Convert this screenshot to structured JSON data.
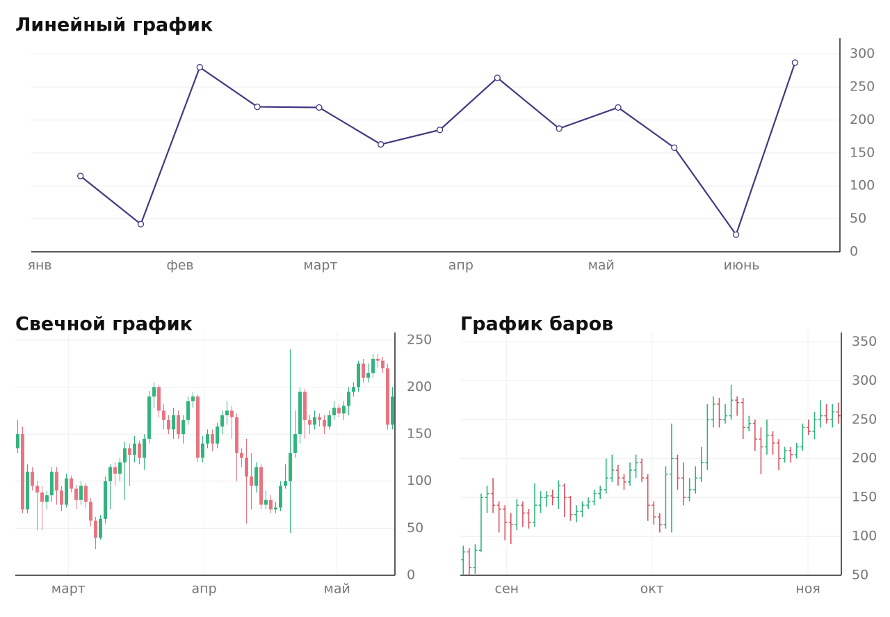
{
  "chart_data": [
    {
      "type": "line",
      "title": "Линейный график",
      "color": "#3f3a80",
      "grid": true,
      "x": [
        0.29,
        0.72,
        1.14,
        1.55,
        1.99,
        2.43,
        2.85,
        3.26,
        3.7,
        4.12,
        4.52,
        4.96,
        5.38
      ],
      "values": [
        115,
        42,
        280,
        220,
        219,
        163,
        185,
        264,
        187,
        219,
        158,
        26,
        287
      ],
      "xlim": [
        -0.06,
        5.7
      ],
      "xticks": [
        {
          "value": 0,
          "label": "янв"
        },
        {
          "value": 1,
          "label": "фев"
        },
        {
          "value": 2,
          "label": "март"
        },
        {
          "value": 3,
          "label": "апр"
        },
        {
          "value": 4,
          "label": "май"
        },
        {
          "value": 5,
          "label": "июнь"
        }
      ],
      "ylim": [
        0,
        324
      ],
      "yticks": [
        0,
        50,
        100,
        150,
        200,
        250,
        300
      ]
    },
    {
      "type": "candlestick",
      "title": "Свечной график",
      "up_color": "#2fb47c",
      "down_color": "#e8737f",
      "grid": true,
      "open": [
        135,
        150,
        70,
        110,
        95,
        88,
        78,
        85,
        110,
        90,
        75,
        103,
        92,
        80,
        95,
        78,
        58,
        40,
        60,
        100,
        115,
        108,
        120,
        135,
        128,
        140,
        125,
        145,
        190,
        200,
        175,
        165,
        155,
        170,
        150,
        165,
        185,
        190,
        125,
        140,
        150,
        140,
        158,
        170,
        175,
        168,
        130,
        125,
        105,
        95,
        115,
        75,
        80,
        70,
        72,
        95,
        100,
        130,
        150,
        195,
        165,
        160,
        168,
        165,
        158,
        170,
        178,
        172,
        180,
        195,
        200,
        225,
        210,
        215,
        230,
        228,
        220,
        160
      ],
      "high": [
        165,
        158,
        118,
        115,
        100,
        95,
        90,
        115,
        115,
        95,
        108,
        106,
        96,
        100,
        98,
        82,
        62,
        64,
        105,
        118,
        120,
        125,
        142,
        140,
        148,
        143,
        150,
        196,
        205,
        202,
        182,
        170,
        178,
        175,
        170,
        190,
        195,
        192,
        148,
        155,
        155,
        162,
        175,
        185,
        180,
        172,
        135,
        145,
        130,
        120,
        118,
        90,
        85,
        78,
        100,
        118,
        240,
        175,
        200,
        198,
        170,
        175,
        172,
        170,
        175,
        185,
        182,
        185,
        200,
        205,
        228,
        230,
        225,
        235,
        235,
        232,
        225,
        200
      ],
      "low": [
        130,
        66,
        66,
        90,
        48,
        48,
        70,
        78,
        75,
        68,
        72,
        88,
        70,
        75,
        72,
        52,
        28,
        38,
        55,
        70,
        95,
        100,
        80,
        95,
        120,
        118,
        112,
        140,
        178,
        168,
        155,
        150,
        145,
        145,
        140,
        160,
        178,
        120,
        120,
        135,
        132,
        135,
        150,
        160,
        145,
        100,
        115,
        55,
        70,
        88,
        70,
        70,
        66,
        66,
        68,
        92,
        45,
        125,
        140,
        145,
        150,
        155,
        158,
        150,
        155,
        165,
        168,
        165,
        170,
        190,
        195,
        205,
        205,
        210,
        220,
        215,
        155,
        155
      ],
      "close": [
        150,
        70,
        110,
        95,
        88,
        78,
        85,
        110,
        90,
        75,
        103,
        92,
        80,
        95,
        78,
        58,
        40,
        60,
        100,
        115,
        108,
        120,
        135,
        128,
        140,
        125,
        145,
        190,
        200,
        175,
        165,
        155,
        170,
        150,
        165,
        185,
        190,
        125,
        140,
        150,
        140,
        158,
        170,
        175,
        168,
        130,
        125,
        105,
        95,
        115,
        75,
        80,
        70,
        72,
        95,
        100,
        130,
        150,
        195,
        165,
        160,
        168,
        165,
        158,
        170,
        178,
        172,
        180,
        195,
        200,
        225,
        210,
        215,
        230,
        228,
        220,
        160,
        190
      ],
      "xlim": [
        -0.5,
        77.5
      ],
      "xticks": [
        {
          "value": 10.4,
          "label": "март"
        },
        {
          "value": 38.3,
          "label": "апр"
        },
        {
          "value": 65.6,
          "label": "май"
        }
      ],
      "ylim": [
        0,
        258
      ],
      "yticks": [
        0,
        50,
        100,
        150,
        200,
        250
      ]
    },
    {
      "type": "ohlc",
      "title": "График баров",
      "up_color": "#2fb47c",
      "down_color": "#d9555f",
      "grid": true,
      "open": [
        70,
        80,
        60,
        82,
        150,
        155,
        140,
        135,
        118,
        115,
        140,
        130,
        118,
        140,
        150,
        152,
        150,
        165,
        150,
        128,
        132,
        140,
        145,
        155,
        160,
        175,
        185,
        175,
        170,
        185,
        195,
        175,
        140,
        125,
        115,
        180,
        200,
        175,
        150,
        160,
        175,
        195,
        250,
        270,
        250,
        255,
        275,
        272,
        240,
        245,
        225,
        215,
        230,
        220,
        200,
        210,
        205,
        215,
        240,
        235,
        250,
        255,
        250,
        260
      ],
      "high": [
        88,
        85,
        90,
        155,
        165,
        175,
        145,
        140,
        130,
        148,
        145,
        135,
        168,
        158,
        158,
        160,
        172,
        168,
        152,
        140,
        145,
        150,
        160,
        165,
        200,
        205,
        192,
        180,
        195,
        205,
        200,
        180,
        145,
        130,
        190,
        245,
        205,
        195,
        175,
        190,
        215,
        270,
        280,
        278,
        270,
        295,
        280,
        278,
        255,
        250,
        240,
        250,
        235,
        225,
        215,
        215,
        220,
        245,
        250,
        260,
        275,
        270,
        270,
        272
      ],
      "low": [
        50,
        50,
        52,
        80,
        130,
        130,
        105,
        95,
        90,
        108,
        112,
        110,
        112,
        130,
        138,
        140,
        135,
        125,
        120,
        118,
        125,
        135,
        140,
        148,
        155,
        170,
        165,
        160,
        165,
        175,
        170,
        120,
        115,
        105,
        110,
        105,
        160,
        140,
        145,
        155,
        170,
        185,
        240,
        240,
        245,
        250,
        255,
        225,
        235,
        210,
        180,
        205,
        205,
        185,
        195,
        195,
        200,
        210,
        230,
        225,
        240,
        245,
        240,
        245
      ],
      "close": [
        80,
        60,
        82,
        150,
        155,
        140,
        135,
        118,
        115,
        140,
        130,
        118,
        140,
        150,
        152,
        150,
        165,
        150,
        128,
        132,
        140,
        145,
        155,
        160,
        175,
        185,
        175,
        170,
        185,
        195,
        175,
        140,
        125,
        115,
        180,
        200,
        175,
        150,
        160,
        175,
        195,
        250,
        270,
        250,
        255,
        275,
        272,
        240,
        245,
        225,
        215,
        230,
        220,
        200,
        210,
        205,
        215,
        240,
        235,
        250,
        255,
        250,
        260,
        255
      ],
      "xlim": [
        -0.5,
        63.5
      ],
      "xticks": [
        {
          "value": 7.3,
          "label": "сен"
        },
        {
          "value": 31.7,
          "label": "окт"
        },
        {
          "value": 57.9,
          "label": "ноя"
        }
      ],
      "ylim": [
        50,
        362
      ],
      "yticks": [
        50,
        100,
        150,
        200,
        250,
        300,
        350
      ]
    }
  ]
}
